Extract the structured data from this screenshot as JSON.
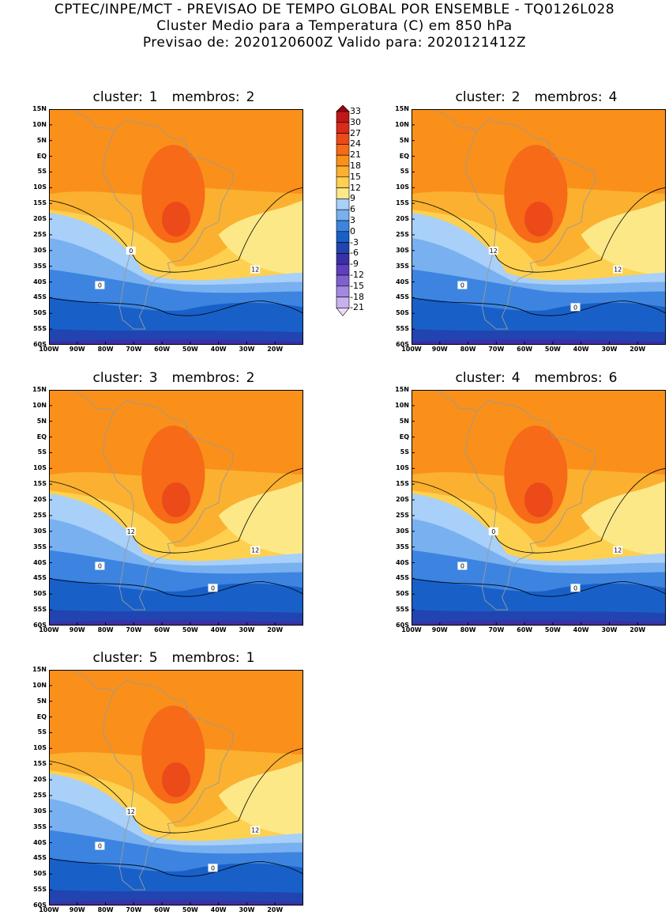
{
  "header": {
    "line1": "CPTEC/INPE/MCT - PREVISAO DE TEMPO GLOBAL POR ENSEMBLE - TQ0126L028",
    "line2": "Cluster Medio para a Temperatura (C) em 850 hPa",
    "line3": "Previsao de: 2020120600Z   Valido para: 2020121412Z"
  },
  "axes": {
    "lat_labels": [
      "15N",
      "10N",
      "5N",
      "EQ",
      "5S",
      "10S",
      "15S",
      "20S",
      "25S",
      "30S",
      "35S",
      "40S",
      "45S",
      "50S",
      "55S",
      "60S"
    ],
    "lon_labels": [
      "100W",
      "90W",
      "80W",
      "70W",
      "60W",
      "50W",
      "40W",
      "30W",
      "20W"
    ]
  },
  "colorbar": {
    "levels": [
      "33",
      "30",
      "27",
      "24",
      "21",
      "18",
      "15",
      "12",
      "9",
      "6",
      "3",
      "0",
      "-3",
      "-6",
      "-9",
      "-12",
      "-15",
      "-18",
      "-21"
    ],
    "colors": [
      "#a00010",
      "#c01818",
      "#dc2a1a",
      "#ec4a18",
      "#f66a18",
      "#fa901a",
      "#fbb030",
      "#fdd050",
      "#fde888",
      "#a8d0f8",
      "#78b0f0",
      "#3c84e0",
      "#1860c8",
      "#2244b0",
      "#3a30a8",
      "#5c40c0",
      "#7e60d0",
      "#a488e0",
      "#c8b0f0",
      "#e8dcfa"
    ]
  },
  "panels": [
    {
      "cluster_label": "cluster:",
      "cluster": "1",
      "members_label": "membros:",
      "members": "2",
      "contour_labels": [
        "12",
        "0",
        "0"
      ]
    },
    {
      "cluster_label": "cluster:",
      "cluster": "2",
      "members_label": "membros:",
      "members": "4",
      "contour_labels": [
        "12",
        "12",
        "0",
        "0"
      ]
    },
    {
      "cluster_label": "cluster:",
      "cluster": "3",
      "members_label": "membros:",
      "members": "2",
      "contour_labels": [
        "12",
        "12",
        "0",
        "0"
      ]
    },
    {
      "cluster_label": "cluster:",
      "cluster": "4",
      "members_label": "membros:",
      "members": "6",
      "contour_labels": [
        "12",
        "0",
        "0",
        "0"
      ]
    },
    {
      "cluster_label": "cluster:",
      "cluster": "5",
      "members_label": "membros:",
      "members": "1",
      "contour_labels": [
        "12",
        "12",
        "0",
        "0"
      ]
    }
  ]
}
